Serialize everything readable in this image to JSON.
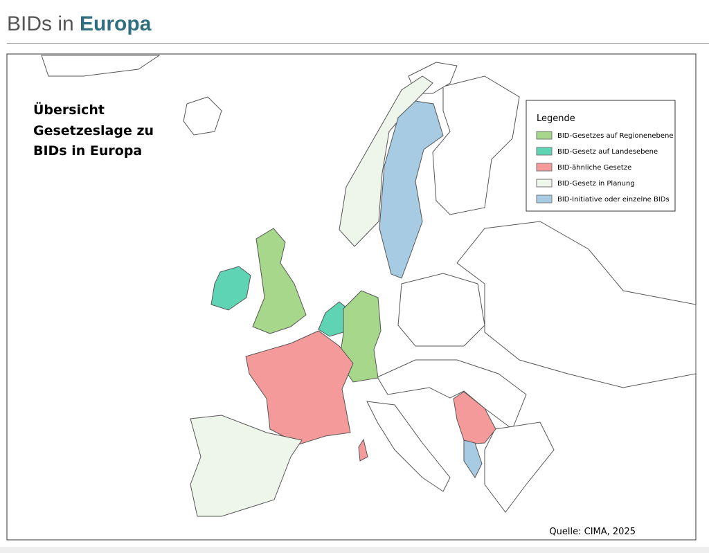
{
  "header": {
    "title_start": "BIDs in",
    "title_highlight": "Europa"
  },
  "map": {
    "title": [
      "Übersicht",
      "Gesetzeslage zu",
      "BIDs in Europa"
    ],
    "legend": {
      "title": "Legende",
      "items": [
        {
          "label": "BID-Gesetzes auf Regionenebene",
          "color": "#a6d78a"
        },
        {
          "label": "BID-Gesetz auf Landesebene",
          "color": "#5fd4b4"
        },
        {
          "label": "BID-ähnliche Gesetze",
          "color": "#f59a9a"
        },
        {
          "label": "BID-Gesetz in Planung",
          "color": "#eef5ea"
        },
        {
          "label": "BID-Initiative oder einzelne BIDs",
          "color": "#a6cbe2"
        }
      ]
    },
    "source": "Quelle: CIMA, 2025"
  }
}
